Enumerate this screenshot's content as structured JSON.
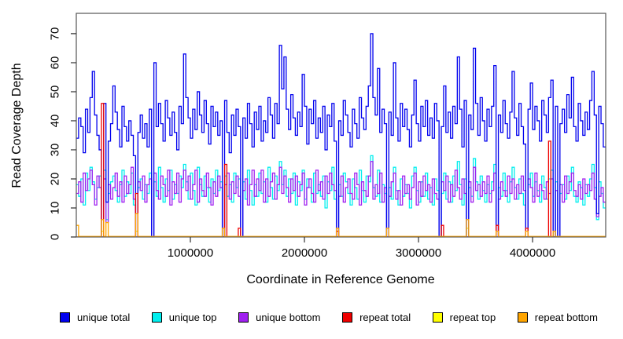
{
  "axes": {
    "ylabel": "Read Coverage Depth",
    "xlabel": "Coordinate in Reference Genome"
  },
  "legend": {
    "items": [
      {
        "label": "unique total"
      },
      {
        "label": "unique top"
      },
      {
        "label": "unique bottom"
      },
      {
        "label": "repeat total"
      },
      {
        "label": "repeat top"
      },
      {
        "label": "repeat bottom"
      }
    ]
  },
  "chart_data": {
    "type": "line",
    "step": true,
    "title": "",
    "xlabel": "Coordinate in Reference Genome",
    "ylabel": "Read Coverage Depth",
    "x_start": 0,
    "x_step": 20000,
    "n_points": 232,
    "xlim": [
      0,
      4641000
    ],
    "ylim": [
      0,
      77
    ],
    "yticks": [
      0,
      10,
      20,
      30,
      40,
      50,
      60,
      70
    ],
    "xticks": [
      1000000,
      2000000,
      3000000,
      4000000
    ],
    "grid": false,
    "legend_position": "bottom",
    "box_color": "#555555",
    "draw_order": [
      "repeat top",
      "unique top",
      "unique bottom",
      "unique total",
      "repeat total",
      "repeat bottom"
    ],
    "series": [
      {
        "name": "unique total",
        "color": "#0000EE",
        "values": [
          34,
          41,
          38,
          29,
          44,
          36,
          48,
          57,
          42,
          35,
          30,
          0,
          46,
          12,
          33,
          39,
          52,
          43,
          37,
          31,
          45,
          38,
          33,
          40,
          35,
          28,
          0,
          36,
          42,
          34,
          39,
          31,
          44,
          0,
          60,
          38,
          46,
          39,
          33,
          47,
          41,
          35,
          43,
          36,
          30,
          45,
          39,
          63,
          48,
          41,
          34,
          44,
          37,
          50,
          42,
          36,
          47,
          39,
          32,
          45,
          38,
          43,
          35,
          40,
          0,
          47,
          36,
          29,
          42,
          35,
          44,
          38,
          0,
          41,
          34,
          46,
          39,
          31,
          43,
          37,
          45,
          33,
          40,
          36,
          48,
          42,
          34,
          46,
          39,
          66,
          51,
          62,
          44,
          37,
          49,
          41,
          35,
          43,
          38,
          56,
          45,
          32,
          44,
          39,
          47,
          34,
          41,
          36,
          45,
          30,
          42,
          38,
          46,
          33,
          0,
          40,
          35,
          47,
          42,
          36,
          31,
          44,
          39,
          34,
          48,
          41,
          37,
          45,
          52,
          70,
          48,
          42,
          58,
          36,
          44,
          39,
          0,
          43,
          35,
          60,
          41,
          33,
          46,
          38,
          44,
          37,
          31,
          42,
          54,
          39,
          33,
          45,
          38,
          47,
          35,
          41,
          34,
          46,
          40,
          0,
          38,
          52,
          36,
          43,
          34,
          45,
          39,
          62,
          44,
          31,
          47,
          0,
          42,
          37,
          65,
          46,
          35,
          48,
          40,
          33,
          44,
          38,
          45,
          59,
          0,
          42,
          36,
          47,
          39,
          34,
          43,
          57,
          41,
          35,
          46,
          38,
          32,
          0,
          44,
          53,
          37,
          45,
          40,
          33,
          47,
          42,
          36,
          48,
          54,
          0,
          45,
          0,
          39,
          44,
          36,
          49,
          41,
          55,
          38,
          33,
          46,
          40,
          35,
          43,
          37,
          47,
          57,
          42,
          8,
          45,
          39,
          31
        ]
      },
      {
        "name": "unique top",
        "color": "#00EEEE",
        "values": [
          18,
          14,
          20,
          11,
          22,
          16,
          24,
          19,
          13,
          17,
          21,
          0,
          23,
          6,
          15,
          19,
          21,
          16,
          12,
          18,
          23,
          14,
          19,
          15,
          22,
          11,
          0,
          17,
          20,
          13,
          18,
          15,
          22,
          0,
          19,
          14,
          24,
          17,
          12,
          20,
          16,
          23,
          13,
          18,
          15,
          21,
          17,
          25,
          19,
          13,
          22,
          16,
          11,
          24,
          18,
          14,
          21,
          17,
          12,
          20,
          15,
          23,
          16,
          19,
          0,
          21,
          14,
          18,
          12,
          22,
          17,
          20,
          0,
          19,
          13,
          23,
          16,
          11,
          18,
          14,
          22,
          15,
          19,
          12,
          24,
          17,
          13,
          21,
          16,
          26,
          18,
          23,
          14,
          20,
          15,
          22,
          11,
          19,
          16,
          23,
          13,
          20,
          17,
          12,
          22,
          15,
          18,
          14,
          21,
          10,
          19,
          16,
          24,
          13,
          0,
          18,
          14,
          22,
          19,
          15,
          11,
          20,
          17,
          13,
          23,
          16,
          12,
          21,
          19,
          28,
          17,
          14,
          23,
          12,
          18,
          15,
          0,
          17,
          13,
          24,
          16,
          11,
          20,
          14,
          18,
          15,
          10,
          21,
          24,
          16,
          12,
          19,
          14,
          22,
          13,
          17,
          11,
          20,
          16,
          0,
          15,
          22,
          13,
          19,
          12,
          21,
          16,
          26,
          18,
          11,
          20,
          0,
          17,
          14,
          27,
          19,
          13,
          21,
          16,
          12,
          18,
          15,
          19,
          25,
          0,
          17,
          14,
          22,
          16,
          12,
          19,
          24,
          17,
          13,
          20,
          15,
          11,
          0,
          18,
          22,
          14,
          19,
          16,
          12,
          21,
          17,
          13,
          20,
          23,
          0,
          19,
          0,
          15,
          18,
          13,
          21,
          16,
          24,
          14,
          12,
          19,
          17,
          11,
          18,
          14,
          20,
          25,
          17,
          6,
          19,
          15,
          10
        ]
      },
      {
        "name": "unique bottom",
        "color": "#A020F0",
        "values": [
          15,
          19,
          12,
          22,
          16,
          20,
          23,
          18,
          11,
          21,
          17,
          0,
          20,
          5,
          18,
          13,
          17,
          22,
          14,
          19,
          12,
          21,
          15,
          18,
          24,
          13,
          0,
          19,
          16,
          21,
          12,
          18,
          20,
          0,
          22,
          16,
          13,
          21,
          18,
          14,
          23,
          11,
          19,
          15,
          22,
          12,
          20,
          23,
          16,
          21,
          13,
          18,
          23,
          12,
          20,
          16,
          14,
          22,
          17,
          11,
          19,
          14,
          21,
          17,
          0,
          18,
          22,
          13,
          19,
          15,
          21,
          14,
          0,
          16,
          20,
          11,
          18,
          23,
          14,
          20,
          16,
          23,
          12,
          20,
          14,
          19,
          22,
          13,
          18,
          24,
          15,
          21,
          17,
          12,
          20,
          16,
          21,
          14,
          18,
          22,
          11,
          17,
          20,
          15,
          12,
          23,
          16,
          19,
          13,
          21,
          15,
          22,
          18,
          16,
          0,
          14,
          21,
          12,
          17,
          20,
          15,
          13,
          22,
          18,
          11,
          19,
          16,
          14,
          21,
          26,
          13,
          18,
          15,
          22,
          12,
          17,
          0,
          14,
          19,
          22,
          13,
          16,
          11,
          21,
          15,
          18,
          13,
          17,
          22,
          11,
          19,
          14,
          21,
          16,
          18,
          12,
          20,
          15,
          13,
          0,
          19,
          16,
          21,
          12,
          18,
          14,
          23,
          17,
          13,
          20,
          15,
          0,
          19,
          12,
          24,
          16,
          18,
          14,
          19,
          15,
          21,
          12,
          16,
          22,
          0,
          13,
          19,
          16,
          14,
          21,
          15,
          20,
          13,
          18,
          15,
          21,
          16,
          0,
          20,
          17,
          12,
          22,
          14,
          18,
          16,
          13,
          19,
          15,
          20,
          0,
          16,
          0,
          18,
          12,
          21,
          15,
          19,
          22,
          16,
          14,
          18,
          13,
          20,
          15,
          18,
          16,
          22,
          13,
          7,
          14,
          17,
          12
        ]
      },
      {
        "name": "repeat total",
        "color": "#EE0000",
        "base": 0,
        "spikes": {
          "11": 46,
          "26": 15,
          "65": 25,
          "71": 3,
          "114": 2,
          "160": 4,
          "184": 4,
          "197": 3,
          "207": 33
        }
      },
      {
        "name": "repeat top",
        "color": "#FFFF00",
        "base": 0,
        "spikes": {
          "11": 2,
          "26": 2,
          "171": 3
        }
      },
      {
        "name": "repeat bottom",
        "color": "#FFA500",
        "base": 0.2,
        "spikes": {
          "0": 4,
          "11": 6,
          "13": 5,
          "26": 8,
          "64": 3,
          "114": 3,
          "136": 3,
          "171": 6,
          "184": 2,
          "197": 2,
          "209": 2
        }
      }
    ]
  }
}
